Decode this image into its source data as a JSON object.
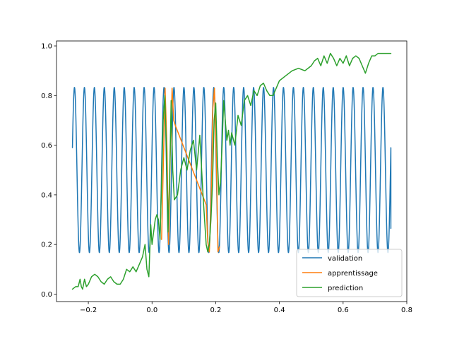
{
  "chart_data": {
    "type": "line",
    "title": "",
    "xlabel": "",
    "ylabel": "",
    "xlim": [
      -0.3,
      0.8
    ],
    "ylim": [
      -0.03,
      1.02
    ],
    "xticks": [
      -0.2,
      0.0,
      0.2,
      0.4,
      0.6,
      0.8
    ],
    "xtick_labels": [
      "−0.2",
      "0.0",
      "0.2",
      "0.4",
      "0.6",
      "0.8"
    ],
    "yticks": [
      0.0,
      0.2,
      0.4,
      0.6,
      0.8,
      1.0
    ],
    "ytick_labels": [
      "0.0",
      "0.2",
      "0.4",
      "0.6",
      "0.8",
      "1.0"
    ],
    "grid": false,
    "legend": {
      "placement": "lower-right"
    },
    "series": [
      {
        "name": "validation",
        "color": "#1f77b4",
        "description_fn": "y = 0.5 + 0.333*sin(2*pi*f*(x+0.25) + phase), sampled on x in [-0.25, 0.75]",
        "x_range": [
          -0.25,
          0.75
        ],
        "cycles": 32,
        "center": 0.5,
        "amplitude": 0.333,
        "start_value": 0.59,
        "end_value": 0.265
      },
      {
        "name": "apprentissage",
        "color": "#ff7f0e",
        "x": [
          0.03,
          0.036,
          0.041,
          0.047,
          0.052,
          0.057,
          0.063,
          0.068,
          0.073,
          0.17,
          0.175,
          0.18,
          0.186,
          0.191,
          0.196,
          0.202,
          0.207,
          0.212
        ],
        "y": [
          0.22,
          0.55,
          0.83,
          0.58,
          0.2,
          0.55,
          0.83,
          0.7,
          0.68,
          0.36,
          0.21,
          0.17,
          0.4,
          0.75,
          0.83,
          0.55,
          0.17,
          0.19
        ]
      },
      {
        "name": "prediction",
        "color": "#2ca02c",
        "x": [
          -0.25,
          -0.24,
          -0.232,
          -0.226,
          -0.222,
          -0.218,
          -0.212,
          -0.206,
          -0.2,
          -0.19,
          -0.18,
          -0.17,
          -0.16,
          -0.15,
          -0.14,
          -0.13,
          -0.12,
          -0.11,
          -0.1,
          -0.09,
          -0.08,
          -0.07,
          -0.06,
          -0.05,
          -0.04,
          -0.03,
          -0.022,
          -0.016,
          -0.01,
          -0.004,
          0.0,
          0.005,
          0.01,
          0.015,
          0.02,
          0.025,
          0.03,
          0.035,
          0.04,
          0.045,
          0.05,
          0.055,
          0.06,
          0.065,
          0.07,
          0.08,
          0.09,
          0.1,
          0.11,
          0.12,
          0.13,
          0.14,
          0.15,
          0.16,
          0.17,
          0.175,
          0.18,
          0.185,
          0.19,
          0.195,
          0.2,
          0.205,
          0.21,
          0.215,
          0.22,
          0.225,
          0.23,
          0.235,
          0.24,
          0.245,
          0.25,
          0.26,
          0.27,
          0.28,
          0.29,
          0.3,
          0.31,
          0.32,
          0.33,
          0.34,
          0.35,
          0.36,
          0.37,
          0.38,
          0.39,
          0.4,
          0.42,
          0.44,
          0.46,
          0.48,
          0.5,
          0.51,
          0.52,
          0.53,
          0.54,
          0.55,
          0.56,
          0.57,
          0.58,
          0.59,
          0.6,
          0.61,
          0.62,
          0.63,
          0.64,
          0.65,
          0.66,
          0.67,
          0.68,
          0.69,
          0.7,
          0.71,
          0.72,
          0.73,
          0.74,
          0.75
        ],
        "y": [
          0.02,
          0.03,
          0.03,
          0.06,
          0.03,
          0.02,
          0.06,
          0.03,
          0.04,
          0.07,
          0.08,
          0.07,
          0.05,
          0.04,
          0.06,
          0.07,
          0.05,
          0.04,
          0.04,
          0.06,
          0.1,
          0.09,
          0.11,
          0.09,
          0.12,
          0.15,
          0.2,
          0.1,
          0.07,
          0.28,
          0.2,
          0.25,
          0.3,
          0.32,
          0.3,
          0.22,
          0.45,
          0.7,
          0.8,
          0.6,
          0.25,
          0.45,
          0.78,
          0.5,
          0.38,
          0.4,
          0.5,
          0.55,
          0.5,
          0.58,
          0.62,
          0.5,
          0.64,
          0.4,
          0.2,
          0.17,
          0.2,
          0.3,
          0.45,
          0.7,
          0.77,
          0.55,
          0.4,
          0.45,
          0.6,
          0.78,
          0.7,
          0.62,
          0.66,
          0.6,
          0.65,
          0.6,
          0.72,
          0.68,
          0.78,
          0.8,
          0.76,
          0.82,
          0.8,
          0.84,
          0.85,
          0.82,
          0.8,
          0.8,
          0.83,
          0.86,
          0.88,
          0.9,
          0.91,
          0.9,
          0.92,
          0.94,
          0.95,
          0.92,
          0.96,
          0.93,
          0.97,
          0.95,
          0.92,
          0.95,
          0.93,
          0.96,
          0.92,
          0.95,
          0.96,
          0.95,
          0.92,
          0.89,
          0.93,
          0.96,
          0.96,
          0.97,
          0.97,
          0.97,
          0.97,
          0.97
        ]
      }
    ]
  }
}
